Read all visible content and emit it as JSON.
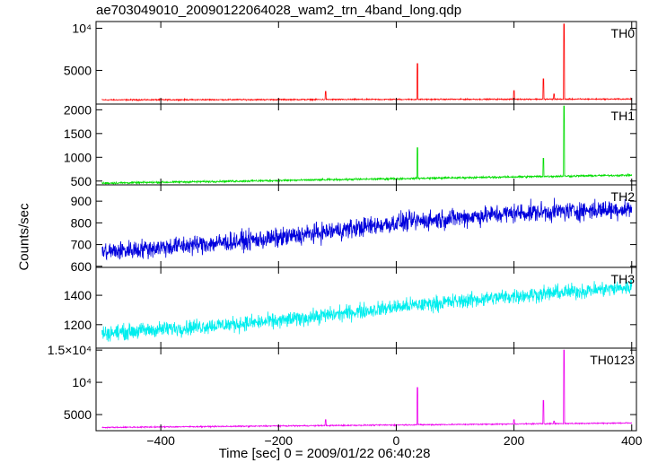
{
  "chart_data": {
    "type": "line",
    "title": "ae703049010_20090122064028_wam2_trn_4band_long.qdp",
    "xlabel": "Time [sec] 0 = 2009/01/22 06:40:28",
    "ylabel": "Counts/sec",
    "xlim": [
      -510,
      408
    ],
    "x_ticks": [
      -400,
      -200,
      0,
      200,
      400
    ],
    "x_tick_labels": [
      "−400",
      "−200",
      "0",
      "200",
      "400"
    ],
    "grid": false,
    "panels": [
      {
        "name": "TH0",
        "color": "#ff0000",
        "ylim": [
          1000,
          10800
        ],
        "y_ticks": [
          5000,
          10000
        ],
        "y_tick_labels": [
          "5000",
          "10⁴"
        ],
        "baseline": [
          [
            -500,
            1500
          ],
          [
            400,
            1600
          ]
        ],
        "noise": 60,
        "spikes": [
          [
            -120,
            2500
          ],
          [
            36,
            5800
          ],
          [
            200,
            2600
          ],
          [
            250,
            4000
          ],
          [
            268,
            2200
          ],
          [
            285,
            10500
          ]
        ]
      },
      {
        "name": "TH1",
        "color": "#00dd00",
        "ylim": [
          420,
          2120
        ],
        "y_ticks": [
          500,
          1000,
          1500,
          2000
        ],
        "y_tick_labels": [
          "500",
          "1000",
          "1500",
          "2000"
        ],
        "baseline": [
          [
            -500,
            455
          ],
          [
            400,
            625
          ]
        ],
        "noise": 18,
        "spikes": [
          [
            -120,
            520
          ],
          [
            36,
            1200
          ],
          [
            250,
            980
          ],
          [
            285,
            2080
          ]
        ]
      },
      {
        "name": "TH2",
        "color": "#0000dd",
        "ylim": [
          595,
          975
        ],
        "y_ticks": [
          600,
          700,
          800,
          900
        ],
        "y_tick_labels": [
          "600",
          "700",
          "800",
          "900"
        ],
        "baseline": [
          [
            -500,
            665
          ],
          [
            -200,
            730
          ],
          [
            0,
            800
          ],
          [
            200,
            845
          ],
          [
            400,
            865
          ]
        ],
        "noise": 38,
        "spikes": []
      },
      {
        "name": "TH3",
        "color": "#00eeee",
        "ylim": [
          1040,
          1590
        ],
        "y_ticks": [
          1200,
          1400
        ],
        "y_tick_labels": [
          "1200",
          "1400"
        ],
        "baseline": [
          [
            -500,
            1140
          ],
          [
            -200,
            1225
          ],
          [
            0,
            1320
          ],
          [
            200,
            1395
          ],
          [
            400,
            1455
          ]
        ],
        "noise": 45,
        "spikes": []
      },
      {
        "name": "TH0123",
        "color": "#ee00ee",
        "ylim": [
          2500,
          15300
        ],
        "y_ticks": [
          5000,
          10000,
          15000
        ],
        "y_tick_labels": [
          "5000",
          "10⁴",
          "1.5×10⁴"
        ],
        "baseline": [
          [
            -500,
            3000
          ],
          [
            400,
            3700
          ]
        ],
        "noise": 80,
        "spikes": [
          [
            -120,
            4200
          ],
          [
            36,
            9200
          ],
          [
            200,
            4200
          ],
          [
            250,
            7200
          ],
          [
            268,
            4000
          ],
          [
            285,
            15000
          ]
        ]
      }
    ]
  }
}
